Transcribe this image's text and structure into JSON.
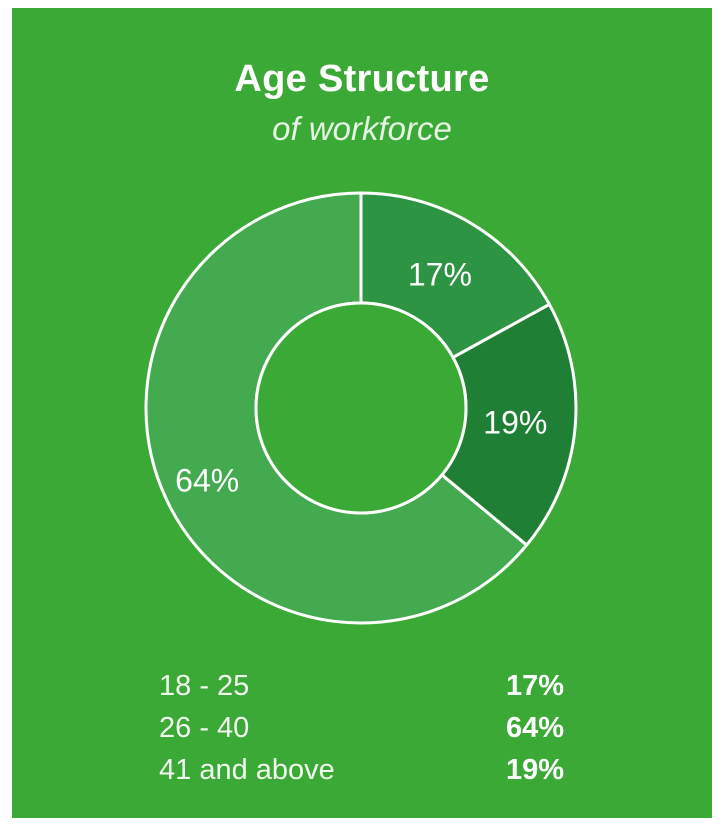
{
  "header": {
    "title": "Age Structure",
    "subtitle": "of workforce"
  },
  "colors": {
    "background": "#3aa935",
    "stroke": "#ffffff"
  },
  "chart_data": {
    "type": "pie",
    "variant": "donut",
    "slices": [
      {
        "label": "18 - 25",
        "value": 17,
        "display": "17%",
        "color": "#2c9443"
      },
      {
        "label": "41 and above",
        "value": 19,
        "display": "19%",
        "color": "#1f7f35"
      },
      {
        "label": "26 - 40",
        "value": 64,
        "display": "64%",
        "color": "#44aa4f"
      }
    ],
    "legend": [
      {
        "label": "18 - 25",
        "value": "17%"
      },
      {
        "label": "26 - 40",
        "value": "64%"
      },
      {
        "label": "41 and above",
        "value": "19%"
      }
    ],
    "legend_position": "bottom"
  }
}
